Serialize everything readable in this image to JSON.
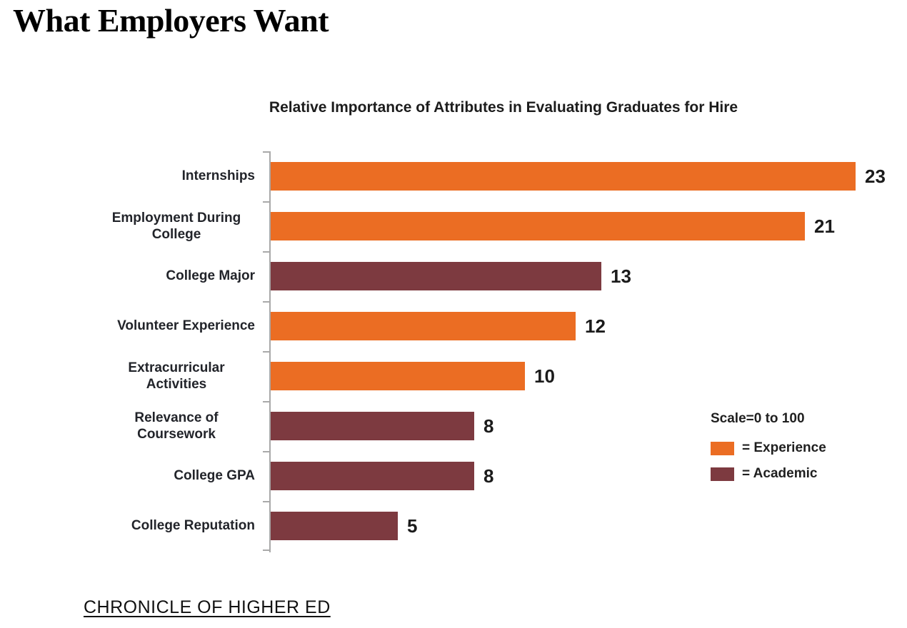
{
  "page": {
    "title": "What Employers Want",
    "source": "CHRONICLE OF HIGHER ED"
  },
  "chart_data": {
    "type": "bar",
    "orientation": "horizontal",
    "title": "Relative Importance of Attributes in Evaluating Graduates for Hire",
    "scale_note": "Scale=0 to 100",
    "xlim": [
      0,
      100
    ],
    "gridlines": false,
    "value_labels_shown": true,
    "legend_position": "right",
    "categories": [
      "Internships",
      "Employment During College",
      "College Major",
      "Volunteer Experience",
      "Extracurricular Activities",
      "Relevance of Coursework",
      "College GPA",
      "College Reputation"
    ],
    "values": [
      23,
      21,
      13,
      12,
      10,
      8,
      8,
      5
    ],
    "groups": [
      "Experience",
      "Experience",
      "Academic",
      "Experience",
      "Experience",
      "Academic",
      "Academic",
      "Academic"
    ],
    "colors": {
      "Experience": "#EB6D23",
      "Academic": "#7D3A40"
    },
    "legend": [
      {
        "label": "= Experience",
        "group": "Experience",
        "swatch_color": "#EB6D23"
      },
      {
        "label": "= Academic",
        "group": "Academic",
        "swatch_color": "#7D3A40"
      }
    ]
  }
}
